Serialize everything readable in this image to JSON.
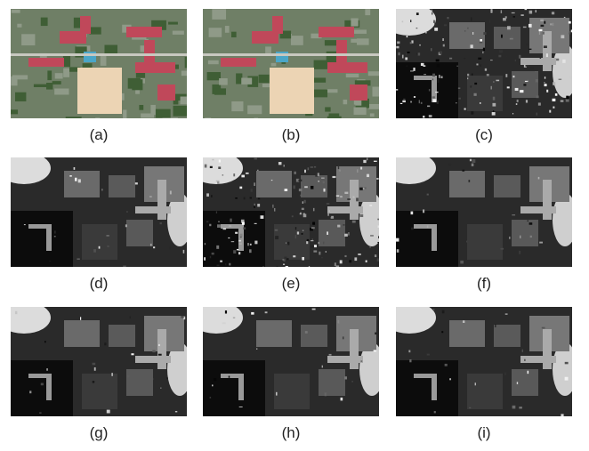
{
  "panels": [
    {
      "label": "(a)"
    },
    {
      "label": "(b)"
    },
    {
      "label": "(c)"
    },
    {
      "label": "(d)"
    },
    {
      "label": "(e)"
    },
    {
      "label": "(f)"
    },
    {
      "label": "(g)"
    },
    {
      "label": "(h)"
    },
    {
      "label": "(i)"
    }
  ]
}
